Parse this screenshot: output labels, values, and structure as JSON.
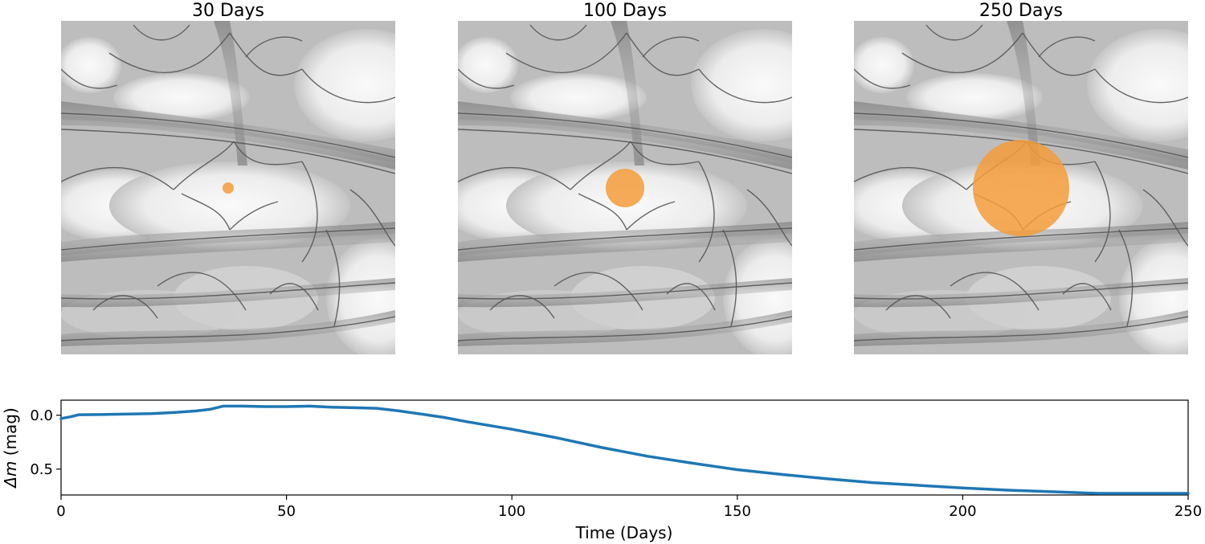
{
  "chart_data": [
    {
      "type": "microlensing_map",
      "panels": [
        {
          "title": "30 Days",
          "time_days": 30,
          "source_size_rel": 0.12
        },
        {
          "title": "100 Days",
          "time_days": 100,
          "source_size_rel": 0.4
        },
        {
          "title": "250 Days",
          "time_days": 250,
          "source_size_rel": 1.0
        }
      ],
      "colors": {
        "source": "#f39c3a",
        "map_dark": "#4a4a4a",
        "map_light": "#f4f4f4"
      }
    },
    {
      "type": "line",
      "xlabel": "Time (Days)",
      "ylabel_italic": "Δm",
      "ylabel_rest": " (mag)",
      "xlim": [
        0,
        250
      ],
      "ylim": [
        0.74,
        -0.14
      ],
      "y_inverted": true,
      "x_ticks": [
        "0",
        "50",
        "100",
        "150",
        "200",
        "250"
      ],
      "y_ticks": [
        "0.0",
        "0.5"
      ],
      "color": "#1f77b4",
      "x": [
        0,
        2,
        4,
        10,
        20,
        25,
        30,
        33,
        36,
        40,
        45,
        50,
        55,
        60,
        65,
        70,
        75,
        80,
        85,
        90,
        100,
        110,
        120,
        130,
        140,
        150,
        160,
        170,
        180,
        190,
        200,
        210,
        220,
        230,
        240,
        250
      ],
      "y": [
        0.03,
        0.015,
        -0.005,
        -0.007,
        -0.015,
        -0.025,
        -0.04,
        -0.055,
        -0.085,
        -0.085,
        -0.08,
        -0.08,
        -0.085,
        -0.075,
        -0.07,
        -0.065,
        -0.04,
        -0.01,
        0.02,
        0.06,
        0.13,
        0.21,
        0.3,
        0.38,
        0.445,
        0.505,
        0.55,
        0.59,
        0.625,
        0.65,
        0.675,
        0.695,
        0.71,
        0.725,
        0.725,
        0.725
      ]
    }
  ]
}
